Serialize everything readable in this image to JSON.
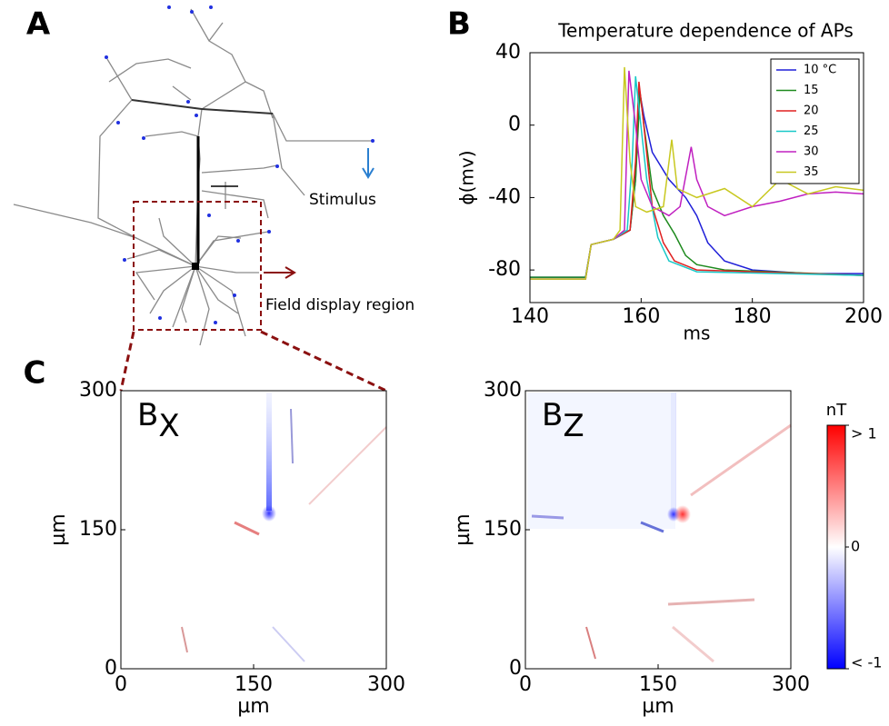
{
  "panels": {
    "a": "A",
    "b": "B",
    "c": "C"
  },
  "morphology": {
    "stimulus_label": "Stimulus",
    "region_label": "Field display region"
  },
  "chart_data": [
    {
      "type": "line",
      "title": "Temperature dependence of APs",
      "xlabel": "ms",
      "ylabel": "ϕ(mv)",
      "xlim": [
        140,
        200
      ],
      "ylim": [
        -98,
        40
      ],
      "xticks": [
        140,
        160,
        180,
        200
      ],
      "yticks": [
        40,
        0,
        -40,
        -80
      ],
      "legend": "upper right",
      "series": [
        {
          "name": "10 °C",
          "color": "#1f1fd8",
          "x": [
            140,
            150,
            151,
            155,
            158,
            159,
            159.7,
            160.5,
            162,
            165,
            168,
            170,
            172,
            175,
            180,
            190,
            200
          ],
          "values": [
            -84,
            -84,
            -66,
            -63,
            -58,
            -30,
            19,
            5,
            -15,
            -30,
            -40,
            -50,
            -65,
            -75,
            -80,
            -82,
            -82
          ]
        },
        {
          "name": "15",
          "color": "#1e8a1e",
          "x": [
            140,
            150,
            151,
            155,
            158,
            159,
            159.8,
            160.5,
            162,
            164,
            166,
            168,
            170,
            175,
            200
          ],
          "values": [
            -84,
            -84,
            -66,
            -63,
            -58,
            -30,
            18,
            0,
            -35,
            -50,
            -60,
            -72,
            -77,
            -80,
            -83
          ]
        },
        {
          "name": "20",
          "color": "#e02020",
          "x": [
            140,
            150,
            151,
            155,
            158,
            159,
            159.6,
            160.3,
            162,
            164,
            166,
            170,
            200
          ],
          "values": [
            -85,
            -85,
            -66,
            -63,
            -58,
            -20,
            24,
            5,
            -45,
            -65,
            -75,
            -80,
            -83
          ]
        },
        {
          "name": "25",
          "color": "#18c8c8",
          "x": [
            140,
            150,
            151,
            155,
            157.5,
            158.4,
            159,
            161,
            163,
            165,
            170,
            200
          ],
          "values": [
            -85,
            -85,
            -66,
            -63,
            -58,
            -20,
            27,
            -30,
            -62,
            -75,
            -81,
            -83
          ]
        },
        {
          "name": "30",
          "color": "#c020c0",
          "x": [
            140,
            150,
            151,
            155,
            157,
            157.8,
            159,
            160,
            162,
            165,
            167,
            169,
            170,
            172,
            175,
            180,
            185,
            190,
            195,
            200
          ],
          "values": [
            -85,
            -85,
            -66,
            -63,
            -58,
            30,
            0,
            -30,
            -45,
            -50,
            -45,
            -12,
            -30,
            -45,
            -50,
            -45,
            -42,
            -38,
            -37,
            -38
          ]
        },
        {
          "name": "35",
          "color": "#c8c820",
          "x": [
            140,
            150,
            151,
            155,
            156.2,
            157,
            158,
            159,
            161,
            164,
            165.5,
            166.5,
            170,
            175,
            180,
            185,
            190,
            195,
            200
          ],
          "values": [
            -85,
            -85,
            -66,
            -63,
            -58,
            32,
            -20,
            -45,
            -48,
            -45,
            -8,
            -35,
            -40,
            -35,
            -45,
            -30,
            -38,
            -34,
            -36
          ]
        }
      ]
    },
    {
      "type": "heatmap",
      "title": "B",
      "subscript": "X",
      "xlabel": "µm",
      "ylabel": "µm",
      "xlim": [
        0,
        300
      ],
      "ylim": [
        0,
        300
      ],
      "xticks": [
        0,
        150,
        300
      ],
      "yticks": [
        0,
        150,
        300
      ]
    },
    {
      "type": "heatmap",
      "title": "B",
      "subscript": "Z",
      "xlabel": "µm",
      "ylabel": "µm",
      "xlim": [
        0,
        300
      ],
      "ylim": [
        0,
        300
      ],
      "xticks": [
        0,
        150,
        300
      ],
      "yticks": [
        0,
        150,
        300
      ],
      "colorbar": {
        "label": "nT",
        "lim": [
          -1,
          1
        ],
        "ticks": [
          {
            "value": 1,
            "label": "> 1"
          },
          0,
          {
            "value": -1,
            "label": "< -1"
          }
        ]
      }
    }
  ]
}
